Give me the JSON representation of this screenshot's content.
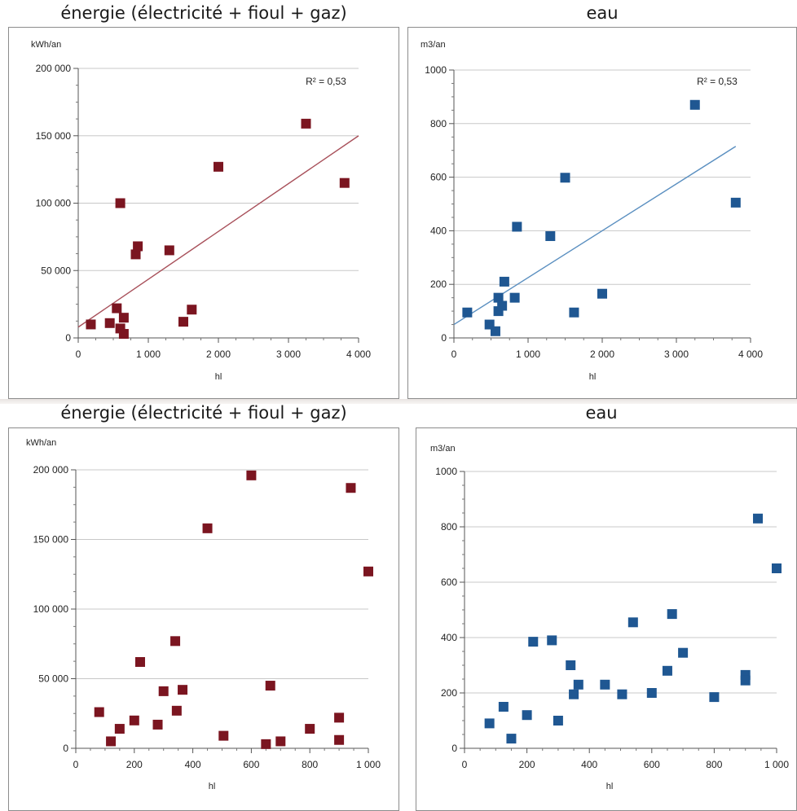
{
  "chart_data": [
    {
      "type": "scatter",
      "title": "énergie (électricité + fioul + gaz)",
      "ylabel": "kWh/an",
      "xlabel": "hl",
      "xlim": [
        0,
        4000
      ],
      "ylim": [
        0,
        200000
      ],
      "xticks": [
        0,
        1000,
        2000,
        3000,
        4000
      ],
      "xtick_labels": [
        "0",
        "1 000",
        "2 000",
        "3 000",
        "4 000"
      ],
      "yticks": [
        0,
        50000,
        100000,
        150000,
        200000
      ],
      "ytick_labels": [
        "0",
        "50 000",
        "100 000",
        "150 000",
        "200 000"
      ],
      "grid": true,
      "color": "#7b1520",
      "annotation": "R² = 0,53",
      "trendline": {
        "x": [
          0,
          4000
        ],
        "y": [
          8000,
          150000
        ],
        "color": "#a8505a"
      },
      "points": [
        {
          "x": 180,
          "y": 10000
        },
        {
          "x": 450,
          "y": 11000
        },
        {
          "x": 550,
          "y": 22000
        },
        {
          "x": 600,
          "y": 7000
        },
        {
          "x": 650,
          "y": 3000
        },
        {
          "x": 650,
          "y": 15000
        },
        {
          "x": 600,
          "y": 100000
        },
        {
          "x": 820,
          "y": 62000
        },
        {
          "x": 850,
          "y": 68000
        },
        {
          "x": 1300,
          "y": 65000
        },
        {
          "x": 1500,
          "y": 12000
        },
        {
          "x": 1620,
          "y": 21000
        },
        {
          "x": 2000,
          "y": 127000
        },
        {
          "x": 3250,
          "y": 159000
        },
        {
          "x": 3800,
          "y": 115000
        }
      ]
    },
    {
      "type": "scatter",
      "title": "eau",
      "ylabel": "m3/an",
      "xlabel": "hl",
      "xlim": [
        0,
        4000
      ],
      "ylim": [
        0,
        1000
      ],
      "xticks": [
        0,
        1000,
        2000,
        3000,
        4000
      ],
      "xtick_labels": [
        "0",
        "1 000",
        "2 000",
        "3 000",
        "4 000"
      ],
      "yticks": [
        0,
        200,
        400,
        600,
        800,
        1000
      ],
      "ytick_labels": [
        "0",
        "200",
        "400",
        "600",
        "800",
        "1000"
      ],
      "grid": true,
      "color": "#1f5792",
      "annotation": "R² = 0,53",
      "trendline": {
        "x": [
          0,
          3800
        ],
        "y": [
          50,
          715
        ],
        "color": "#5a8fc0"
      },
      "points": [
        {
          "x": 180,
          "y": 95
        },
        {
          "x": 480,
          "y": 50
        },
        {
          "x": 560,
          "y": 25
        },
        {
          "x": 600,
          "y": 150
        },
        {
          "x": 600,
          "y": 100
        },
        {
          "x": 650,
          "y": 120
        },
        {
          "x": 680,
          "y": 210
        },
        {
          "x": 820,
          "y": 150
        },
        {
          "x": 850,
          "y": 415
        },
        {
          "x": 1300,
          "y": 380
        },
        {
          "x": 1500,
          "y": 598
        },
        {
          "x": 1620,
          "y": 95
        },
        {
          "x": 2000,
          "y": 165
        },
        {
          "x": 3250,
          "y": 870
        },
        {
          "x": 3800,
          "y": 505
        }
      ]
    },
    {
      "type": "scatter",
      "title": "énergie (électricité + fioul + gaz)",
      "ylabel": "kWh/an",
      "xlabel": "hl",
      "xlim": [
        0,
        1000
      ],
      "ylim": [
        0,
        200000
      ],
      "xticks": [
        0,
        200,
        400,
        600,
        800,
        1000
      ],
      "xtick_labels": [
        "0",
        "200",
        "400",
        "600",
        "800",
        "1 000"
      ],
      "yticks": [
        0,
        50000,
        100000,
        150000,
        200000
      ],
      "ytick_labels": [
        "0",
        "50 000",
        "100 000",
        "150 000",
        "200 000"
      ],
      "grid": true,
      "color": "#7b1520",
      "points": [
        {
          "x": 80,
          "y": 26000
        },
        {
          "x": 120,
          "y": 5000
        },
        {
          "x": 150,
          "y": 14000
        },
        {
          "x": 200,
          "y": 20000
        },
        {
          "x": 220,
          "y": 62000
        },
        {
          "x": 280,
          "y": 17000
        },
        {
          "x": 300,
          "y": 41000
        },
        {
          "x": 340,
          "y": 77000
        },
        {
          "x": 345,
          "y": 27000
        },
        {
          "x": 365,
          "y": 42000
        },
        {
          "x": 450,
          "y": 158000
        },
        {
          "x": 505,
          "y": 9000
        },
        {
          "x": 600,
          "y": 196000
        },
        {
          "x": 650,
          "y": 3000
        },
        {
          "x": 665,
          "y": 45000
        },
        {
          "x": 700,
          "y": 5000
        },
        {
          "x": 800,
          "y": 14000
        },
        {
          "x": 900,
          "y": 22000
        },
        {
          "x": 900,
          "y": 6000
        },
        {
          "x": 940,
          "y": 187000
        },
        {
          "x": 1000,
          "y": 127000
        }
      ]
    },
    {
      "type": "scatter",
      "title": "eau",
      "ylabel": "m3/an",
      "xlabel": "hl",
      "xlim": [
        0,
        1000
      ],
      "ylim": [
        0,
        1000
      ],
      "xticks": [
        0,
        200,
        400,
        600,
        800,
        1000
      ],
      "xtick_labels": [
        "0",
        "200",
        "400",
        "600",
        "800",
        "1 000"
      ],
      "yticks": [
        0,
        200,
        400,
        600,
        800,
        1000
      ],
      "ytick_labels": [
        "0",
        "200",
        "400",
        "600",
        "800",
        "1000"
      ],
      "grid": true,
      "color": "#1f5792",
      "points": [
        {
          "x": 80,
          "y": 90
        },
        {
          "x": 125,
          "y": 150
        },
        {
          "x": 150,
          "y": 35
        },
        {
          "x": 200,
          "y": 120
        },
        {
          "x": 220,
          "y": 385
        },
        {
          "x": 280,
          "y": 390
        },
        {
          "x": 300,
          "y": 100
        },
        {
          "x": 340,
          "y": 300
        },
        {
          "x": 350,
          "y": 195
        },
        {
          "x": 365,
          "y": 230
        },
        {
          "x": 450,
          "y": 230
        },
        {
          "x": 505,
          "y": 195
        },
        {
          "x": 540,
          "y": 455
        },
        {
          "x": 600,
          "y": 200
        },
        {
          "x": 650,
          "y": 280
        },
        {
          "x": 665,
          "y": 485
        },
        {
          "x": 700,
          "y": 345
        },
        {
          "x": 800,
          "y": 185
        },
        {
          "x": 900,
          "y": 265
        },
        {
          "x": 900,
          "y": 245
        },
        {
          "x": 940,
          "y": 830
        },
        {
          "x": 1000,
          "y": 650
        }
      ]
    }
  ]
}
